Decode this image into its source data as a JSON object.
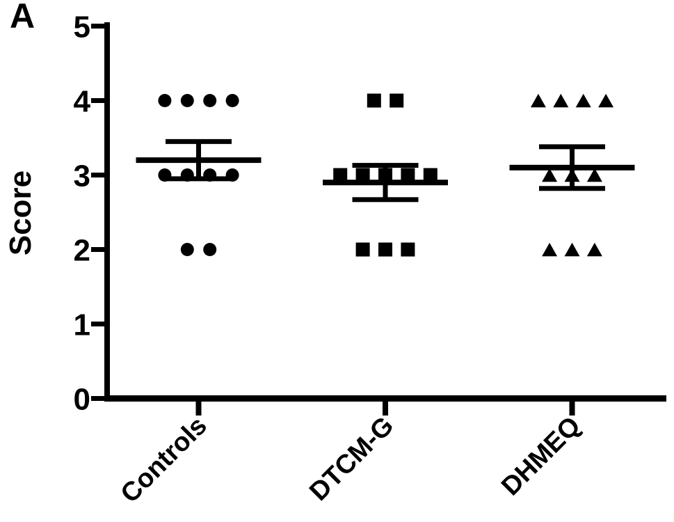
{
  "figure": {
    "panel_label": "A"
  },
  "chart_data": {
    "type": "scatter",
    "title": "",
    "panel_label": "A",
    "ylabel": "Score",
    "xlabel": "",
    "ylim": [
      0,
      5
    ],
    "yticks": [
      0,
      1,
      2,
      3,
      4,
      5
    ],
    "x_categories": [
      "Controls",
      "DTCM-G",
      "DHMEQ"
    ],
    "error_bar_type": "mean_sem",
    "legend": "none",
    "grid": false,
    "groups": [
      {
        "label": "Controls",
        "marker": "circle",
        "values": [
          4,
          4,
          4,
          4,
          3,
          3,
          3,
          3,
          2,
          2
        ],
        "mean": 3.2,
        "sem": 0.25
      },
      {
        "label": "DTCM-G",
        "marker": "square",
        "values": [
          4,
          4,
          3,
          3,
          3,
          3,
          3,
          2,
          2,
          2
        ],
        "mean": 2.9,
        "sem": 0.23
      },
      {
        "label": "DHMEQ",
        "marker": "triangle",
        "values": [
          4,
          4,
          4,
          4,
          3,
          3,
          3,
          2,
          2,
          2
        ],
        "mean": 3.1,
        "sem": 0.28
      }
    ],
    "colors": {
      "foreground": "#000000",
      "background": "#ffffff"
    }
  }
}
